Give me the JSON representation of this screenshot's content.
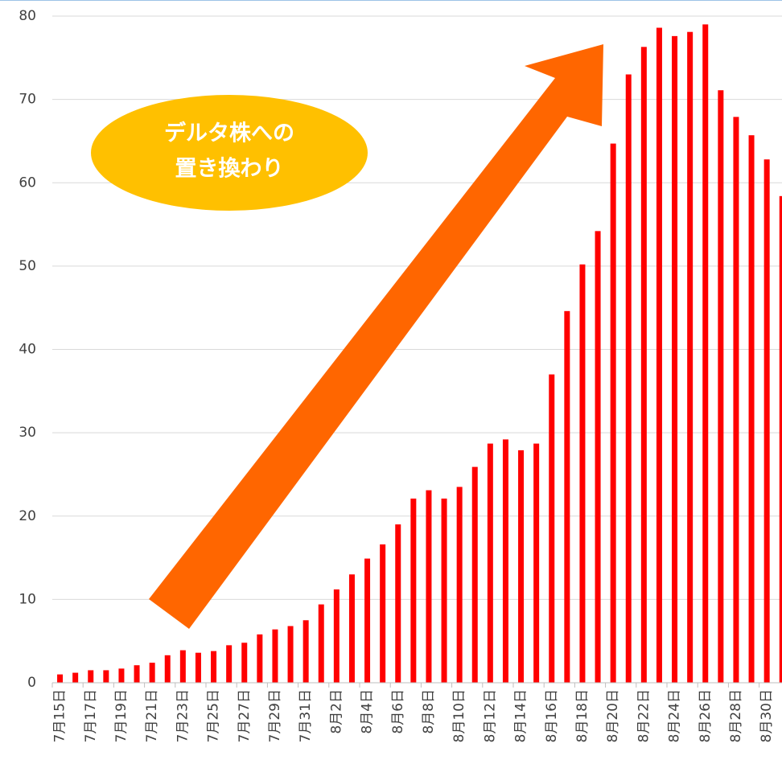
{
  "chart_data": {
    "type": "bar",
    "annotation": [
      "デルタ株への",
      "置き換わり"
    ],
    "categories": [
      "7月15日",
      null,
      "7月17日",
      null,
      "7月19日",
      null,
      "7月21日",
      null,
      "7月23日",
      null,
      "7月25日",
      null,
      "7月27日",
      null,
      "7月29日",
      null,
      "7月31日",
      null,
      "8月2日",
      null,
      "8月4日",
      null,
      "8月6日",
      null,
      "8月8日",
      null,
      "8月10日",
      null,
      "8月12日",
      null,
      "8月14日",
      null,
      "8月16日",
      null,
      "8月18日",
      null,
      "8月20日",
      null,
      "8月22日",
      null,
      "8月24日",
      null,
      "8月26日",
      null,
      "8月28日",
      null,
      "8月30日",
      null
    ],
    "values": [
      1.0,
      1.2,
      1.5,
      1.5,
      1.7,
      2.1,
      2.4,
      3.3,
      3.9,
      3.6,
      3.8,
      4.5,
      4.8,
      5.8,
      6.4,
      6.8,
      7.5,
      9.4,
      11.2,
      13.0,
      14.9,
      16.6,
      19.0,
      22.1,
      23.1,
      22.1,
      23.5,
      25.9,
      28.7,
      29.2,
      27.9,
      28.7,
      37.0,
      44.6,
      50.2,
      54.2,
      64.7,
      73.0,
      76.3,
      78.6,
      77.6,
      78.1,
      79.0,
      71.1,
      67.9,
      65.7,
      62.8,
      58.4
    ],
    "color": "#ff0000",
    "ylim": [
      0,
      80
    ],
    "yticks": [
      0,
      10,
      20,
      30,
      40,
      50,
      60,
      70,
      80
    ],
    "grid": true
  }
}
